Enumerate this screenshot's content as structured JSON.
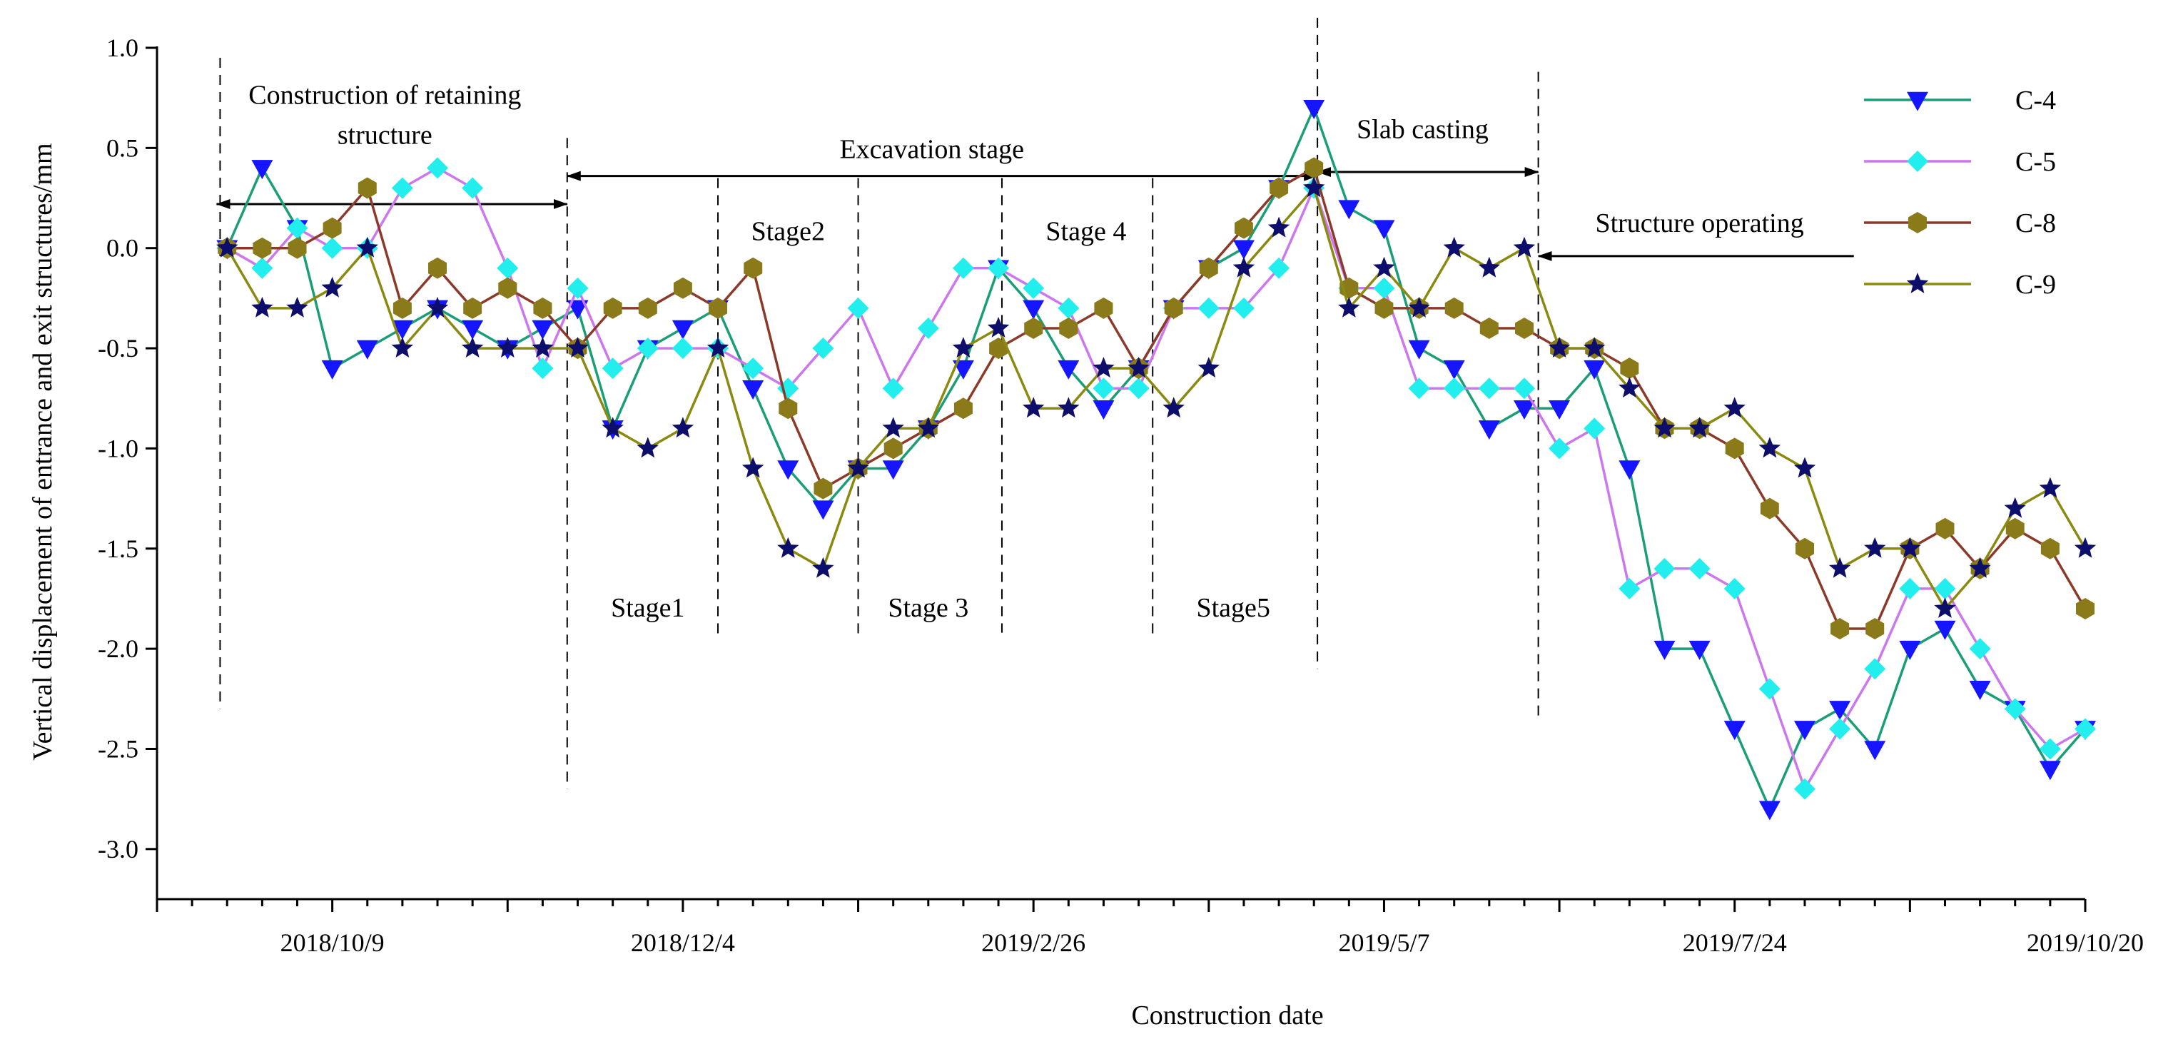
{
  "chart_data": {
    "type": "line",
    "title": "",
    "xlabel": "Construction date",
    "ylabel": "Vertical displacement of entrance and exit structures/mm",
    "ylim": [
      -3.25,
      1.0
    ],
    "yticks": [
      1.0,
      0.5,
      0.0,
      -0.5,
      -1.0,
      -1.5,
      -2.0,
      -2.5,
      -3.0
    ],
    "ytick_labels": [
      "1.0",
      "0.5",
      "0.0",
      "-0.5",
      "-1.0",
      "-1.5",
      "-2.0",
      "-2.5",
      "-3.0"
    ],
    "x_count": 55,
    "x_tick_labels": [
      {
        "index": 5,
        "label": "2018/10/9"
      },
      {
        "index": 15,
        "label": "2018/12/4"
      },
      {
        "index": 25,
        "label": "2019/2/26"
      },
      {
        "index": 35,
        "label": "2019/5/7"
      },
      {
        "index": 45,
        "label": "2019/7/24"
      },
      {
        "index": 55,
        "label": "2019/10/20"
      }
    ],
    "series": [
      {
        "name": "C-4",
        "color": "#1a9e77",
        "marker": "triangle-down",
        "marker_color": "#1515ff",
        "x": [
          2,
          3,
          4,
          5,
          6,
          7,
          8,
          9,
          10,
          11,
          12,
          13,
          14,
          15,
          16,
          17,
          18,
          19,
          20,
          21,
          22,
          23,
          24,
          25,
          26,
          27,
          28,
          29,
          30,
          31,
          32,
          33,
          34,
          35,
          36,
          37,
          38,
          39,
          40,
          41,
          42,
          43,
          44,
          45,
          46,
          47,
          48,
          49,
          50,
          51,
          52,
          53,
          54,
          55
        ],
        "values": [
          0.0,
          0.4,
          0.1,
          -0.6,
          -0.5,
          -0.4,
          -0.3,
          -0.4,
          -0.5,
          -0.4,
          -0.3,
          -0.9,
          -0.5,
          -0.4,
          -0.3,
          -0.7,
          -1.1,
          -1.3,
          -1.1,
          -1.1,
          -0.9,
          -0.6,
          -0.1,
          -0.3,
          -0.6,
          -0.8,
          -0.6,
          -0.3,
          -0.1,
          0.0,
          0.3,
          0.7,
          0.2,
          0.1,
          -0.5,
          -0.6,
          -0.9,
          -0.8,
          -0.8,
          -0.6,
          -1.1,
          -2.0,
          -2.0,
          -2.4,
          -2.8,
          -2.4,
          -2.3,
          -2.5,
          -2.0,
          -1.9,
          -2.2,
          -2.3,
          -2.6,
          -2.4
        ]
      },
      {
        "name": "C-5",
        "color": "#cc77ee",
        "marker": "diamond",
        "marker_color": "#22eeee",
        "x": [
          2,
          3,
          4,
          5,
          6,
          7,
          8,
          9,
          10,
          11,
          12,
          13,
          14,
          15,
          16,
          17,
          18,
          19,
          20,
          21,
          22,
          23,
          24,
          25,
          26,
          27,
          28,
          29,
          30,
          31,
          32,
          33,
          34,
          35,
          36,
          37,
          38,
          39,
          40,
          41,
          42,
          43,
          44,
          45,
          46,
          47,
          48,
          49,
          50,
          51,
          52,
          53,
          54,
          55
        ],
        "values": [
          0.0,
          -0.1,
          0.1,
          0.0,
          0.0,
          0.3,
          0.4,
          0.3,
          -0.1,
          -0.6,
          -0.2,
          -0.6,
          -0.5,
          -0.5,
          -0.5,
          -0.6,
          -0.7,
          -0.5,
          -0.3,
          -0.7,
          -0.4,
          -0.1,
          -0.1,
          -0.2,
          -0.3,
          -0.7,
          -0.7,
          -0.3,
          -0.3,
          -0.3,
          -0.1,
          0.3,
          -0.2,
          -0.2,
          -0.7,
          -0.7,
          -0.7,
          -0.7,
          -1.0,
          -0.9,
          -1.7,
          -1.6,
          -1.6,
          -1.7,
          -2.2,
          -2.7,
          -2.4,
          -2.1,
          -1.7,
          -1.7,
          -2.0,
          -2.3,
          -2.5,
          -2.4
        ]
      },
      {
        "name": "C-8",
        "color": "#8b3a2a",
        "marker": "hexagon",
        "marker_color": "#8a7a1a",
        "x": [
          2,
          3,
          4,
          5,
          6,
          7,
          8,
          9,
          10,
          11,
          12,
          13,
          14,
          15,
          16,
          17,
          18,
          19,
          20,
          21,
          22,
          23,
          24,
          25,
          26,
          27,
          28,
          29,
          30,
          31,
          32,
          33,
          34,
          35,
          36,
          37,
          38,
          39,
          40,
          41,
          42,
          43,
          44,
          45,
          46,
          47,
          48,
          49,
          50,
          51,
          52,
          53,
          54,
          55
        ],
        "values": [
          0.0,
          0.0,
          0.0,
          0.1,
          0.3,
          -0.3,
          -0.1,
          -0.3,
          -0.2,
          -0.3,
          -0.5,
          -0.3,
          -0.3,
          -0.2,
          -0.3,
          -0.1,
          -0.8,
          -1.2,
          -1.1,
          -1.0,
          -0.9,
          -0.8,
          -0.5,
          -0.4,
          -0.4,
          -0.3,
          -0.6,
          -0.3,
          -0.1,
          0.1,
          0.3,
          0.4,
          -0.2,
          -0.3,
          -0.3,
          -0.3,
          -0.4,
          -0.4,
          -0.5,
          -0.5,
          -0.6,
          -0.9,
          -0.9,
          -1.0,
          -1.3,
          -1.5,
          -1.9,
          -1.9,
          -1.5,
          -1.4,
          -1.6,
          -1.4,
          -1.5,
          -1.8
        ]
      },
      {
        "name": "C-9",
        "color": "#8a8a10",
        "marker": "star",
        "marker_color": "#0d0d6b",
        "x": [
          2,
          3,
          4,
          5,
          6,
          7,
          8,
          9,
          10,
          11,
          12,
          13,
          14,
          15,
          16,
          17,
          18,
          19,
          20,
          21,
          22,
          23,
          24,
          25,
          26,
          27,
          28,
          29,
          30,
          31,
          32,
          33,
          34,
          35,
          36,
          37,
          38,
          39,
          40,
          41,
          42,
          43,
          44,
          45,
          46,
          47,
          48,
          49,
          50,
          51,
          52,
          53,
          54,
          55
        ],
        "values": [
          0.0,
          -0.3,
          -0.3,
          -0.2,
          0.0,
          -0.5,
          -0.3,
          -0.5,
          -0.5,
          -0.5,
          -0.5,
          -0.9,
          -1.0,
          -0.9,
          -0.5,
          -1.1,
          -1.5,
          -1.6,
          -1.1,
          -0.9,
          -0.9,
          -0.5,
          -0.4,
          -0.8,
          -0.8,
          -0.6,
          -0.6,
          -0.8,
          -0.6,
          -0.1,
          0.1,
          0.3,
          -0.3,
          -0.1,
          -0.3,
          0.0,
          -0.1,
          0.0,
          -0.5,
          -0.5,
          -0.7,
          -0.9,
          -0.9,
          -0.8,
          -1.0,
          -1.1,
          -1.6,
          -1.5,
          -1.5,
          -1.8,
          -1.6,
          -1.3,
          -1.2,
          -1.5
        ]
      }
    ],
    "stage_lines": [
      {
        "x": 1.8,
        "y_top": 0.95,
        "y_bottom": -2.3
      },
      {
        "x": 11.7,
        "y_top": 0.55,
        "y_bottom": -2.7
      },
      {
        "x": 16.0,
        "y_top": 0.35,
        "y_bottom": -1.95
      },
      {
        "x": 20.0,
        "y_top": 0.35,
        "y_bottom": -1.95
      },
      {
        "x": 24.1,
        "y_top": 0.35,
        "y_bottom": -1.92
      },
      {
        "x": 28.4,
        "y_top": 0.35,
        "y_bottom": -1.95
      },
      {
        "x": 33.1,
        "y_top": 1.15,
        "y_bottom": -2.1
      },
      {
        "x": 39.4,
        "y_top": 0.88,
        "y_bottom": -2.35
      }
    ],
    "phase_arrows": [
      {
        "x1": 1.7,
        "x2": 11.7,
        "y": 0.22,
        "heads": "both"
      },
      {
        "x1": 11.7,
        "x2": 33.1,
        "y": 0.36,
        "heads": "both"
      },
      {
        "x1": 33.1,
        "x2": 39.4,
        "y": 0.38,
        "heads": "both"
      },
      {
        "x1": 48.4,
        "x2": 39.4,
        "y": -0.04,
        "heads": "end"
      }
    ],
    "annotations": [
      {
        "id": "retaining1",
        "text": "Construction of retaining",
        "x": 6.5,
        "y": 0.72
      },
      {
        "id": "retaining2",
        "text": "structure",
        "x": 6.5,
        "y": 0.52
      },
      {
        "id": "excavation",
        "text": "Excavation stage",
        "x": 22.1,
        "y": 0.45
      },
      {
        "id": "slab",
        "text": "Slab casting",
        "x": 36.1,
        "y": 0.55
      },
      {
        "id": "operating",
        "text": "Structure operating",
        "x": 44.0,
        "y": 0.08
      },
      {
        "id": "stage2",
        "text": "Stage2",
        "x": 18.0,
        "y": 0.04
      },
      {
        "id": "stage4",
        "text": "Stage 4",
        "x": 26.5,
        "y": 0.04
      },
      {
        "id": "stage1",
        "text": "Stage1",
        "x": 14.0,
        "y": -1.84
      },
      {
        "id": "stage3",
        "text": "Stage 3",
        "x": 22.0,
        "y": -1.84
      },
      {
        "id": "stage5",
        "text": "Stage5",
        "x": 30.7,
        "y": -1.84
      }
    ],
    "legend_position": "top-right"
  }
}
